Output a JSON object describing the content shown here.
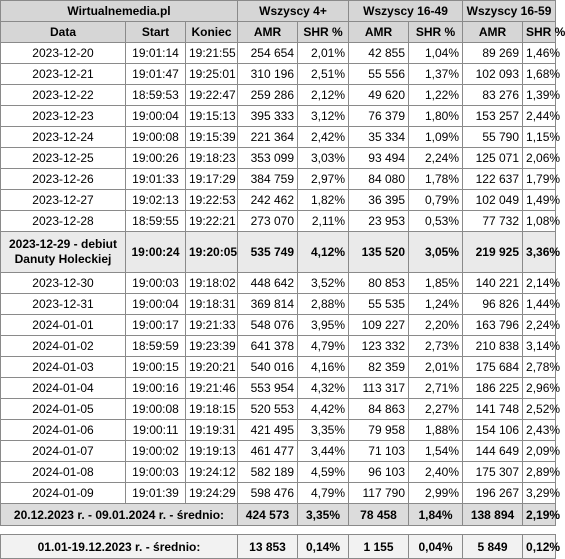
{
  "header": {
    "title": "Wirtualnemedia.pl",
    "groups": [
      "Wszyscy 4+",
      "Wszyscy 16-49",
      "Wszyscy 16-59"
    ],
    "columns": [
      "Data",
      "Start",
      "Koniec",
      "AMR",
      "SHR %",
      "AMR",
      "SHR %",
      "AMR",
      "SHR %"
    ]
  },
  "rows": [
    {
      "date": "2023-12-20",
      "start": "19:01:14",
      "end": "19:21:55",
      "amr4": "254 654",
      "shr4": "2,01%",
      "amr1649": "42 855",
      "shr1649": "1,04%",
      "amr1659": "89 269",
      "shr1659": "1,46%"
    },
    {
      "date": "2023-12-21",
      "start": "19:01:47",
      "end": "19:25:01",
      "amr4": "310 196",
      "shr4": "2,51%",
      "amr1649": "55 556",
      "shr1649": "1,37%",
      "amr1659": "102 093",
      "shr1659": "1,68%"
    },
    {
      "date": "2023-12-22",
      "start": "18:59:53",
      "end": "19:22:47",
      "amr4": "259 286",
      "shr4": "2,12%",
      "amr1649": "49 620",
      "shr1649": "1,22%",
      "amr1659": "83 276",
      "shr1659": "1,39%"
    },
    {
      "date": "2023-12-23",
      "start": "19:00:04",
      "end": "19:15:13",
      "amr4": "395 333",
      "shr4": "3,12%",
      "amr1649": "76 379",
      "shr1649": "1,80%",
      "amr1659": "153 257",
      "shr1659": "2,44%"
    },
    {
      "date": "2023-12-24",
      "start": "19:00:08",
      "end": "19:15:39",
      "amr4": "221 364",
      "shr4": "2,42%",
      "amr1649": "35 334",
      "shr1649": "1,09%",
      "amr1659": "55 790",
      "shr1659": "1,15%"
    },
    {
      "date": "2023-12-25",
      "start": "19:00:26",
      "end": "19:18:23",
      "amr4": "353 099",
      "shr4": "3,03%",
      "amr1649": "93 494",
      "shr1649": "2,24%",
      "amr1659": "125 071",
      "shr1659": "2,06%"
    },
    {
      "date": "2023-12-26",
      "start": "19:01:33",
      "end": "19:17:29",
      "amr4": "384 759",
      "shr4": "2,97%",
      "amr1649": "84 080",
      "shr1649": "1,78%",
      "amr1659": "122 637",
      "shr1659": "1,79%"
    },
    {
      "date": "2023-12-27",
      "start": "19:02:13",
      "end": "19:22:53",
      "amr4": "242 462",
      "shr4": "1,82%",
      "amr1649": "36 395",
      "shr1649": "0,79%",
      "amr1659": "102 049",
      "shr1659": "1,49%"
    },
    {
      "date": "2023-12-28",
      "start": "18:59:55",
      "end": "19:22:21",
      "amr4": "273 070",
      "shr4": "2,11%",
      "amr1649": "23 953",
      "shr1649": "0,53%",
      "amr1659": "77 732",
      "shr1659": "1,08%"
    },
    {
      "date": "2023-12-29 - debiut Danuty Holeckiej",
      "start": "19:00:24",
      "end": "19:20:05",
      "amr4": "535 749",
      "shr4": "4,12%",
      "amr1649": "135 520",
      "shr1649": "3,05%",
      "amr1659": "219 925",
      "shr1659": "3,36%",
      "highlight": true
    },
    {
      "date": "2023-12-30",
      "start": "19:00:03",
      "end": "19:18:02",
      "amr4": "448 642",
      "shr4": "3,52%",
      "amr1649": "80 853",
      "shr1649": "1,85%",
      "amr1659": "140 221",
      "shr1659": "2,14%"
    },
    {
      "date": "2023-12-31",
      "start": "19:00:04",
      "end": "19:18:31",
      "amr4": "369 814",
      "shr4": "2,88%",
      "amr1649": "55 535",
      "shr1649": "1,24%",
      "amr1659": "96 826",
      "shr1659": "1,44%"
    },
    {
      "date": "2024-01-01",
      "start": "19:00:17",
      "end": "19:21:33",
      "amr4": "548 076",
      "shr4": "3,95%",
      "amr1649": "109 227",
      "shr1649": "2,20%",
      "amr1659": "163 796",
      "shr1659": "2,24%"
    },
    {
      "date": "2024-01-02",
      "start": "18:59:59",
      "end": "19:23:39",
      "amr4": "641 378",
      "shr4": "4,79%",
      "amr1649": "123 332",
      "shr1649": "2,73%",
      "amr1659": "210 838",
      "shr1659": "3,14%"
    },
    {
      "date": "2024-01-03",
      "start": "19:00:15",
      "end": "19:20:21",
      "amr4": "540 016",
      "shr4": "4,16%",
      "amr1649": "82 359",
      "shr1649": "2,01%",
      "amr1659": "175 684",
      "shr1659": "2,78%"
    },
    {
      "date": "2024-01-04",
      "start": "19:00:16",
      "end": "19:21:46",
      "amr4": "553 954",
      "shr4": "4,32%",
      "amr1649": "113 317",
      "shr1649": "2,71%",
      "amr1659": "186 225",
      "shr1659": "2,96%"
    },
    {
      "date": "2024-01-05",
      "start": "19:00:08",
      "end": "19:18:15",
      "amr4": "520 553",
      "shr4": "4,42%",
      "amr1649": "84 863",
      "shr1649": "2,27%",
      "amr1659": "141 748",
      "shr1659": "2,52%"
    },
    {
      "date": "2024-01-06",
      "start": "19:00:11",
      "end": "19:19:31",
      "amr4": "421 495",
      "shr4": "3,35%",
      "amr1649": "79 958",
      "shr1649": "1,88%",
      "amr1659": "154 106",
      "shr1659": "2,43%"
    },
    {
      "date": "2024-01-07",
      "start": "19:00:02",
      "end": "19:19:13",
      "amr4": "461 477",
      "shr4": "3,44%",
      "amr1649": "71 103",
      "shr1649": "1,54%",
      "amr1659": "144 649",
      "shr1659": "2,09%"
    },
    {
      "date": "2024-01-08",
      "start": "19:00:03",
      "end": "19:24:12",
      "amr4": "582 189",
      "shr4": "4,59%",
      "amr1649": "96 103",
      "shr1649": "2,40%",
      "amr1659": "175 307",
      "shr1659": "2,89%"
    },
    {
      "date": "2024-01-09",
      "start": "19:01:39",
      "end": "19:24:29",
      "amr4": "598 476",
      "shr4": "4,79%",
      "amr1649": "117 790",
      "shr1649": "2,99%",
      "amr1659": "196 267",
      "shr1659": "3,29%"
    }
  ],
  "average": {
    "label": "20.12.2023 r. - 09.01.2024 r. - średnio:",
    "amr4": "424 573",
    "shr4": "3,35%",
    "amr1649": "78 458",
    "shr1649": "1,84%",
    "amr1659": "138 894",
    "shr1659": "2,19%"
  },
  "footer": {
    "label": "01.01-19.12.2023 r. - średnio:",
    "amr4": "13 853",
    "shr4": "0,14%",
    "amr1649": "1 155",
    "shr1649": "0,04%",
    "amr1659": "5 849",
    "shr1659": "0,12%"
  }
}
